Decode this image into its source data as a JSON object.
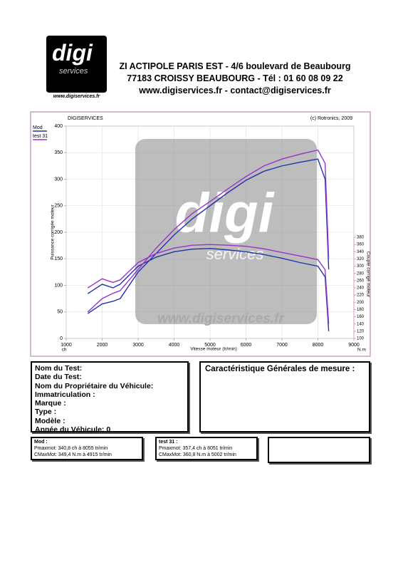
{
  "header": {
    "logo": "digi",
    "logo_sub": "services",
    "logo_url": "www.digiservices.fr",
    "lines": [
      "ZI ACTIPOLE PARIS EST - 4/6 boulevard de Beaubourg",
      "77183 CROISSY BEAUBOURG - Tél : 01 60 08 09 22",
      "www.digiservices.fr - contact@digiservices.fr"
    ]
  },
  "chart_data": {
    "type": "line",
    "title": "DIGISERVICES",
    "copyright": "(c) Rotronics, 2009",
    "watermark": {
      "logo": "digi",
      "sub": "services",
      "url": "www.digiservices.fr"
    },
    "x_label": "Vitesse moteur (tr/min)",
    "y_label": "Puissance corrigée moteur",
    "y2_label": "Couple corrigé moteur",
    "y_unit": "ch",
    "y2_unit": "N.m",
    "grid": true,
    "x": [
      1600,
      2000,
      2300,
      2500,
      3000,
      3500,
      4000,
      4500,
      5000,
      5500,
      6000,
      6500,
      7000,
      7500,
      8000,
      8200,
      8300
    ],
    "series": [
      {
        "name": "Mod",
        "color": "#2233aa",
        "values": [
          47,
          65,
          70,
          75,
          125,
          160,
          195,
          225,
          250,
          275,
          298,
          315,
          325,
          332,
          338,
          300,
          130
        ],
        "y2_values": [
          224,
          250,
          240,
          250,
          300,
          325,
          340,
          347,
          349,
          345,
          340,
          332,
          322,
          310,
          300,
          270,
          120
        ]
      },
      {
        "name": "test 31",
        "color": "#9933cc",
        "values": [
          50,
          75,
          85,
          90,
          130,
          170,
          205,
          235,
          258,
          282,
          305,
          325,
          338,
          347,
          355,
          330,
          150
        ],
        "y2_values": [
          240,
          265,
          255,
          262,
          310,
          335,
          350,
          358,
          360,
          358,
          355,
          348,
          338,
          328,
          318,
          290,
          140
        ]
      }
    ],
    "xlim": [
      1000,
      9000
    ],
    "xticks": [
      1000,
      2000,
      3000,
      4000,
      5000,
      6000,
      7000,
      8000,
      9000
    ],
    "ylim": [
      0,
      400
    ],
    "yticks": [
      0,
      50,
      100,
      150,
      200,
      250,
      300,
      350,
      400
    ],
    "y2lim": [
      100,
      380
    ],
    "y2ticks": [
      100,
      120,
      140,
      160,
      180,
      200,
      220,
      240,
      260,
      280,
      300,
      320,
      340,
      360,
      380
    ]
  },
  "info": {
    "fields": [
      "Nom du Test:",
      "Date du Test:",
      "Nom du Propriétaire du Véhicule:",
      "Immatriculation  :",
      "Marque  :",
      "Type  :",
      "Modèle  :",
      "Année du Véhicule: 0"
    ],
    "title": "Caractéristique Générales de mesure :"
  },
  "results": [
    {
      "name": "Mod :",
      "power": "Pmaxmot: 340,8 ch à 8055 tr/min",
      "torque": "CMaxMot: 349,4 N.m à 4915 tr/min"
    },
    {
      "name": "test 31 :",
      "power": "Pmaxmot: 357,4 ch à 8051 tr/min",
      "torque": "CMaxMot: 360,8 N.m à 5002 tr/min"
    }
  ]
}
